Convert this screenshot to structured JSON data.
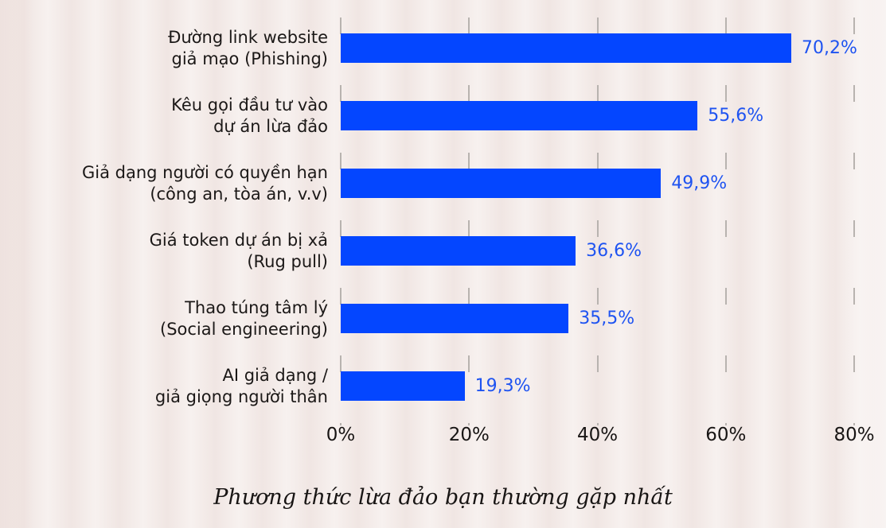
{
  "chart_data": {
    "type": "bar",
    "orientation": "horizontal",
    "title": "",
    "caption": "Phương thức lừa đảo bạn thường gặp nhất",
    "categories": [
      "Đường link website\ngiả mạo (Phishing)",
      "Kêu gọi đầu tư vào\ndự án lừa đảo",
      "Giả dạng người có quyền hạn\n(công an, tòa án, v.v)",
      "Giá token dự án bị xả\n(Rug pull)",
      "Thao túng tâm lý\n(Social engineering)",
      "AI giả dạng /\ngiả giọng người thân"
    ],
    "values": [
      70.2,
      55.6,
      49.9,
      36.6,
      35.5,
      19.3
    ],
    "value_labels": [
      "70,2%",
      "55,6%",
      "49,9%",
      "36,6%",
      "35,5%",
      "19,3%"
    ],
    "x_ticks": [
      "0%",
      "20%",
      "40%",
      "60%",
      "80%"
    ],
    "x_tick_values": [
      0,
      20,
      40,
      60,
      80
    ],
    "xlim": [
      0,
      80
    ],
    "xlabel": "",
    "ylabel": "",
    "legend": "none",
    "grid": "vertical-dashed",
    "colors": {
      "bar": "#0446ff",
      "value_label": "#1e53f1",
      "category_text": "#1b1817",
      "axis_text": "#181514",
      "gridline": "#b8b3af",
      "background": "#f7f1ef"
    }
  }
}
